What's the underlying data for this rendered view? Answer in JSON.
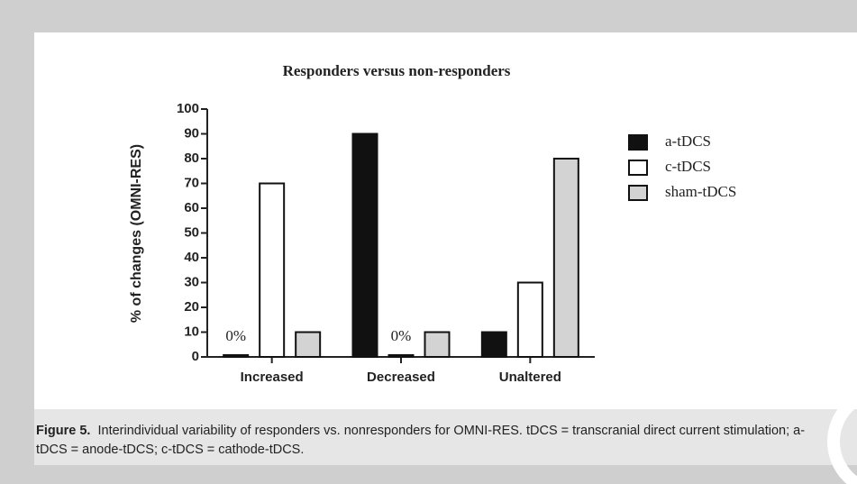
{
  "chart_data": {
    "type": "bar",
    "title": "Responders versus non-responders",
    "ylabel": "% of changes (OMNI-RES)",
    "categories": [
      "Increased",
      "Decreased",
      "Unaltered"
    ],
    "series": [
      {
        "name": "a-tDCS",
        "color": "#111111",
        "values": [
          0,
          90,
          10
        ],
        "value_labels": [
          "0%",
          null,
          null
        ]
      },
      {
        "name": "c-tDCS",
        "color": "#ffffff",
        "values": [
          70,
          0,
          30
        ],
        "value_labels": [
          null,
          "0%",
          null
        ]
      },
      {
        "name": "sham-tDCS",
        "color": "#d3d3d3",
        "values": [
          10,
          10,
          80
        ]
      }
    ],
    "ylim": [
      0,
      100
    ],
    "yticks": [
      0,
      10,
      20,
      30,
      40,
      50,
      60,
      70,
      80,
      90,
      100
    ],
    "grid": false,
    "legend": "right"
  },
  "caption": {
    "label": "Figure 5.",
    "text": "Interindividual variability of responders vs. nonresponders for OMNI-RES. tDCS = transcranial direct current stimulation; a-tDCS = anode-tDCS; c-tDCS = cathode-tDCS."
  }
}
